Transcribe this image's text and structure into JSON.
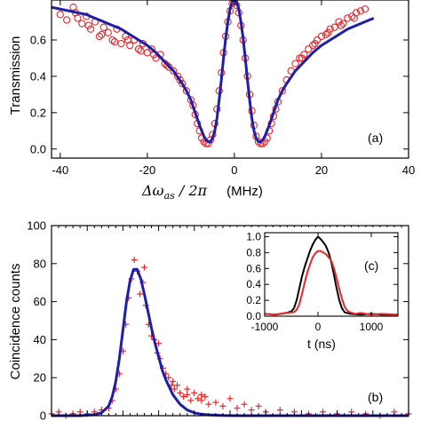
{
  "chart_data": [
    {
      "id": "a",
      "type": "scatter",
      "panel_label": "(a)",
      "xlabel": "Δω_as / 2π",
      "xlabel_math": "Δω",
      "xlabel_sub": "as",
      "xlabel_tail": " / 2π",
      "xlabel_unit": "(MHz)",
      "ylabel": "Transmission",
      "xlim": [
        -42,
        40
      ],
      "ylim": [
        -0.05,
        0.82
      ],
      "xticks": [
        -40,
        -20,
        0,
        20,
        40
      ],
      "xtick_labels": [
        "-40",
        "-20",
        "0",
        "20",
        "40"
      ],
      "yticks": [
        0.0,
        0.2,
        0.4,
        0.6
      ],
      "ytick_labels": [
        "0.0",
        "0.2",
        "0.4",
        "0.6"
      ],
      "colors": {
        "data": "#e8262a",
        "fit": "#1c1fa8"
      },
      "series": [
        {
          "kind": "points",
          "x": [
            -40,
            -38.5,
            -37,
            -36,
            -35,
            -34,
            -33,
            -32,
            -31,
            -30,
            -29,
            -28,
            -27,
            -26,
            -25,
            -24,
            -23,
            -22,
            -21,
            -20,
            -19,
            -18,
            -17,
            -16,
            -15,
            -14,
            -13,
            -12,
            -11,
            -10,
            -9.5,
            -9,
            -8.5,
            -8,
            -7.5,
            -7,
            -6.5,
            -6,
            -5.5,
            -5,
            -4.5,
            -4,
            -3.5,
            -3,
            -2.5,
            -2,
            -1.5,
            -1,
            -0.5,
            0,
            0.5,
            1,
            1.5,
            2,
            2.5,
            3,
            3.5,
            4,
            4.5,
            5,
            5.5,
            6,
            6.5,
            7,
            7.5,
            8,
            8.5,
            9,
            9.5,
            10,
            11,
            12,
            13,
            14,
            15,
            16,
            17,
            18,
            19,
            20,
            21,
            22,
            23,
            24,
            25,
            26,
            27,
            28,
            29,
            30,
            -36.5,
            -33.5,
            -30.5,
            -27.5,
            -24.5,
            -21.5,
            -18.5,
            -15.5,
            -12.5,
            15.5,
            18.5,
            21.5,
            24.5,
            27.5
          ],
          "y": [
            0.74,
            0.71,
            0.78,
            0.72,
            0.69,
            0.73,
            0.66,
            0.7,
            0.62,
            0.67,
            0.64,
            0.6,
            0.66,
            0.58,
            0.62,
            0.57,
            0.6,
            0.55,
            0.58,
            0.53,
            0.55,
            0.5,
            0.52,
            0.47,
            0.45,
            0.43,
            0.4,
            0.36,
            0.32,
            0.27,
            0.24,
            0.19,
            0.14,
            0.1,
            0.06,
            0.04,
            0.03,
            0.03,
            0.05,
            0.08,
            0.14,
            0.22,
            0.32,
            0.42,
            0.53,
            0.62,
            0.7,
            0.76,
            0.8,
            0.81,
            0.79,
            0.75,
            0.68,
            0.6,
            0.5,
            0.4,
            0.3,
            0.21,
            0.13,
            0.07,
            0.04,
            0.03,
            0.03,
            0.04,
            0.06,
            0.1,
            0.14,
            0.18,
            0.22,
            0.26,
            0.32,
            0.38,
            0.43,
            0.47,
            0.5,
            0.52,
            0.55,
            0.57,
            0.6,
            0.62,
            0.63,
            0.66,
            0.67,
            0.7,
            0.69,
            0.72,
            0.73,
            0.75,
            0.76,
            0.77,
            0.75,
            0.68,
            0.63,
            0.59,
            0.6,
            0.54,
            0.52,
            0.46,
            0.38,
            0.5,
            0.58,
            0.64,
            0.68,
            0.72
          ]
        },
        {
          "kind": "line",
          "x": [
            -42,
            -40,
            -38,
            -36,
            -34,
            -32,
            -30,
            -28,
            -26,
            -24,
            -22,
            -20,
            -18,
            -16,
            -14,
            -12,
            -11,
            -10,
            -9,
            -8,
            -7,
            -6.5,
            -6,
            -5.5,
            -5,
            -4.5,
            -4,
            -3.5,
            -3,
            -2.5,
            -2,
            -1.5,
            -1,
            -0.5,
            0,
            0.5,
            1,
            1.5,
            2,
            2.5,
            3,
            3.5,
            4,
            4.5,
            5,
            5.5,
            6,
            6.5,
            7,
            8,
            9,
            10,
            11,
            12,
            14,
            16,
            18,
            20,
            22,
            24,
            26,
            28,
            30,
            32
          ],
          "y": [
            0.78,
            0.77,
            0.76,
            0.75,
            0.74,
            0.72,
            0.7,
            0.68,
            0.66,
            0.63,
            0.6,
            0.57,
            0.53,
            0.48,
            0.43,
            0.36,
            0.32,
            0.27,
            0.2,
            0.13,
            0.07,
            0.05,
            0.04,
            0.04,
            0.06,
            0.1,
            0.17,
            0.27,
            0.38,
            0.5,
            0.61,
            0.7,
            0.77,
            0.81,
            0.82,
            0.81,
            0.77,
            0.7,
            0.61,
            0.5,
            0.38,
            0.27,
            0.17,
            0.1,
            0.06,
            0.04,
            0.04,
            0.05,
            0.07,
            0.13,
            0.2,
            0.27,
            0.32,
            0.36,
            0.43,
            0.48,
            0.53,
            0.57,
            0.6,
            0.63,
            0.66,
            0.68,
            0.7,
            0.72
          ]
        }
      ]
    },
    {
      "id": "b",
      "type": "scatter",
      "panel_label": "(b)",
      "ylabel": "Coincidence counts",
      "xlim": [
        -1000,
        4000
      ],
      "ylim": [
        0,
        100
      ],
      "yticks": [
        0,
        20,
        40,
        60,
        80,
        100
      ],
      "ytick_labels": [
        "0",
        "20",
        "40",
        "60",
        "80",
        "100"
      ],
      "colors": {
        "data": "#e8262a",
        "fit": "#1c1fa8"
      },
      "series": [
        {
          "kind": "points",
          "x": [
            -1000,
            -900,
            -800,
            -700,
            -600,
            -500,
            -400,
            -300,
            -200,
            -150,
            -100,
            -50,
            0,
            40,
            80,
            120,
            160,
            200,
            240,
            280,
            320,
            360,
            400,
            440,
            480,
            520,
            560,
            600,
            640,
            680,
            720,
            760,
            800,
            850,
            900,
            950,
            1000,
            1050,
            1100,
            1150,
            1200,
            1300,
            1400,
            1500,
            1600,
            1700,
            1800,
            1900,
            2000,
            2200,
            2400,
            2600,
            2800,
            3000,
            3200,
            3400,
            3600,
            3800,
            4000,
            300,
            500,
            700,
            900,
            1100
          ],
          "y": [
            1,
            2,
            0,
            1,
            2,
            1,
            2,
            3,
            4,
            8,
            14,
            22,
            34,
            48,
            62,
            72,
            82,
            76,
            64,
            70,
            58,
            48,
            42,
            40,
            33,
            30,
            25,
            22,
            20,
            16,
            14,
            16,
            12,
            10,
            11,
            8,
            12,
            9,
            8,
            10,
            6,
            7,
            5,
            9,
            4,
            6,
            3,
            5,
            2,
            3,
            2,
            1,
            2,
            1,
            2,
            1,
            0,
            2,
            1,
            78,
            38,
            18,
            14,
            11
          ]
        },
        {
          "kind": "line",
          "x": [
            -1000,
            -600,
            -400,
            -300,
            -200,
            -150,
            -100,
            -50,
            0,
            50,
            100,
            150,
            200,
            250,
            300,
            350,
            400,
            450,
            500,
            550,
            600,
            700,
            800,
            900,
            1000,
            1100,
            1200,
            1400,
            1600,
            1800,
            2000,
            2500,
            3000,
            3500,
            4000
          ],
          "y": [
            0,
            0,
            0.5,
            1.5,
            5,
            10,
            18,
            30,
            45,
            60,
            71,
            77,
            77,
            72,
            64,
            55,
            46,
            38,
            31,
            24,
            19,
            11,
            6,
            3,
            1.5,
            0.8,
            0.4,
            0.1,
            0,
            0,
            0,
            0,
            0,
            0,
            0
          ]
        }
      ]
    },
    {
      "id": "c",
      "type": "line",
      "panel_label": "(c)",
      "xlabel": "t (ns)",
      "xlim": [
        -1000,
        1500
      ],
      "ylim": [
        0,
        1.05
      ],
      "xticks": [
        -1000,
        0,
        1000
      ],
      "xtick_labels": [
        "-1000",
        "0",
        "1000"
      ],
      "yticks": [
        0.0,
        0.2,
        0.4,
        0.6,
        0.8,
        1.0
      ],
      "ytick_labels": [
        "0.0",
        "0.2",
        "0.4",
        "0.6",
        "0.8",
        "1.0"
      ],
      "series": [
        {
          "color": "#000000",
          "x": [
            -1000,
            -800,
            -600,
            -500,
            -450,
            -400,
            -350,
            -300,
            -250,
            -200,
            -150,
            -100,
            -50,
            0,
            50,
            100,
            150,
            200,
            250,
            300,
            350,
            400,
            450,
            500,
            600,
            800,
            1000,
            1200,
            1500
          ],
          "y": [
            0.03,
            0.02,
            0.04,
            0.06,
            0.1,
            0.2,
            0.35,
            0.5,
            0.62,
            0.72,
            0.82,
            0.9,
            0.96,
            1.0,
            0.97,
            0.93,
            0.88,
            0.8,
            0.68,
            0.52,
            0.35,
            0.2,
            0.1,
            0.05,
            0.03,
            0.02,
            0.03,
            0.02,
            0.02
          ]
        },
        {
          "color": "#e8262a",
          "x": [
            -1000,
            -800,
            -600,
            -450,
            -400,
            -350,
            -300,
            -250,
            -200,
            -150,
            -100,
            -50,
            0,
            50,
            100,
            150,
            200,
            250,
            300,
            350,
            400,
            450,
            500,
            550,
            600,
            700,
            800,
            1000,
            1200,
            1500
          ],
          "y": [
            0.03,
            0.02,
            0.04,
            0.05,
            0.08,
            0.15,
            0.28,
            0.42,
            0.55,
            0.65,
            0.74,
            0.79,
            0.82,
            0.82,
            0.8,
            0.78,
            0.74,
            0.7,
            0.6,
            0.48,
            0.34,
            0.22,
            0.12,
            0.07,
            0.05,
            0.03,
            0.04,
            0.02,
            0.03,
            0.02
          ]
        }
      ]
    }
  ]
}
